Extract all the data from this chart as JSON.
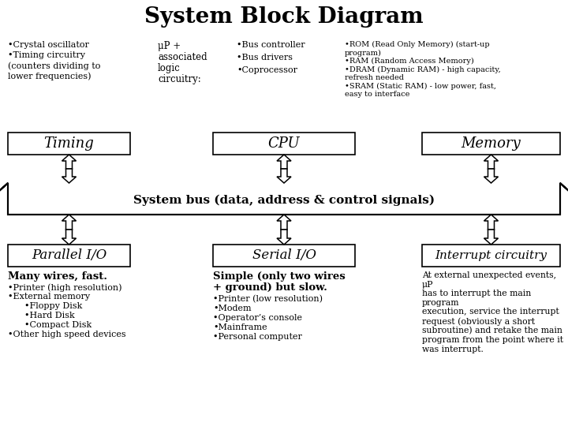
{
  "title": "System Block Diagram",
  "title_fontsize": 20,
  "background_color": "#ffffff",
  "col1_bullets": [
    "•Crystal oscillator",
    "•Timing circuitry",
    "(counters dividing to",
    "lower frequencies)"
  ],
  "col2_bullets": [
    "μP +",
    "associated",
    "logic",
    "circuitry:"
  ],
  "col3_bullets": [
    "•Bus controller",
    "•Bus drivers",
    "•Coprocessor"
  ],
  "col4_bullets": [
    "•ROM (Read Only Memory) (start-up",
    "program)",
    "•RAM (Random Access Memory)",
    "•DRAM (Dynamic RAM) - high capacity,",
    "refresh needed",
    "•SRAM (Static RAM) - low power, fast,",
    "easy to interface"
  ],
  "box1_label": "Timing",
  "box2_label": "CPU",
  "box3_label": "Memory",
  "bus_label": "System bus (data, address & control signals)",
  "box4_label": "Parallel I/O",
  "box5_label": "Serial I/O",
  "box6_label": "Interrupt circuitry",
  "col1_bottom_title": "Many wires, fast.",
  "col1_bottom_bullets": [
    "•Printer (high resolution)",
    "•External memory",
    "      •Floppy Disk",
    "      •Hard Disk",
    "      •Compact Disk",
    "•Other high speed devices"
  ],
  "col2_bottom_title_line1": "Simple (only two wires",
  "col2_bottom_title_line2": "+ ground) but slow.",
  "col2_bottom_bullets": [
    "•Printer (low resolution)",
    "•Modem",
    "•Operator’s console",
    "•Mainframe",
    "•Personal computer"
  ],
  "col3_bottom_text": "At external unexpected events, μP\nhas to interrupt the main program\nexecution, service the interrupt\nrequest (obviously a short\nsubroutine) and retake the main\nprogram from the point where it\nwas interrupt."
}
